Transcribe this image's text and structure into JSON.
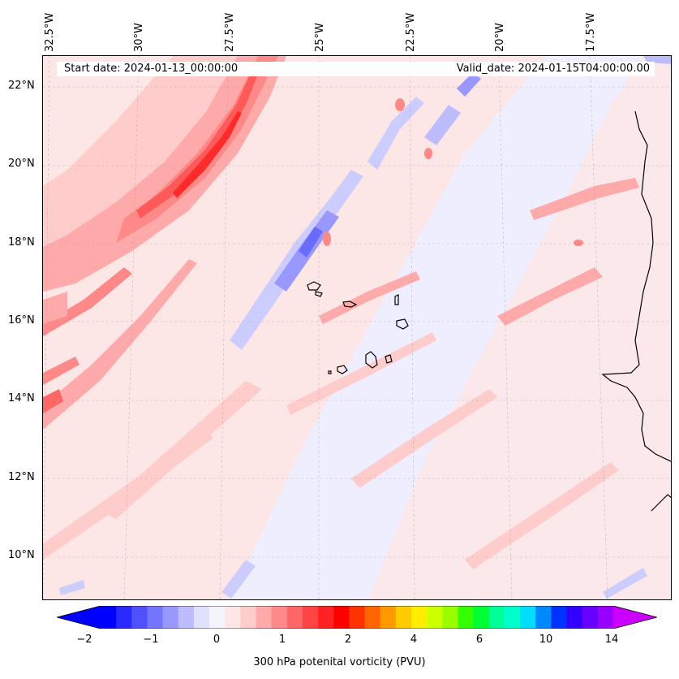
{
  "header": {
    "start_date": "Start date: 2024-01-13_00:00:00",
    "valid_date": "Valid_date: 2024-01-15T04:00:00.00"
  },
  "lat_labels": [
    "22°N",
    "20°N",
    "18°N",
    "16°N",
    "14°N",
    "12°N",
    "10°N"
  ],
  "lon_labels": [
    "32.5°W",
    "30°W",
    "27.5°W",
    "25°W",
    "22.5°W",
    "20°W",
    "17.5°W"
  ],
  "colorbar": {
    "label": "300 hPa potenital vorticity (PVU)",
    "ticks": [
      "−2",
      "−1",
      "0",
      "1",
      "2",
      "4",
      "6",
      "10",
      "14"
    ],
    "colors": [
      "#0000ff",
      "#2a2aff",
      "#5050ff",
      "#7474ff",
      "#9898ff",
      "#bcbcff",
      "#e0e0ff",
      "#f4f4ff",
      "#ffe6e6",
      "#ffcccc",
      "#ffaaaa",
      "#ff8888",
      "#ff6666",
      "#ff4444",
      "#ff2222",
      "#ff0000",
      "#ff3300",
      "#ff6600",
      "#ff9900",
      "#ffcc00",
      "#ffee00",
      "#ccff00",
      "#99ff00",
      "#33ff00",
      "#00ff33",
      "#00ff99",
      "#00ffcc",
      "#00ddff",
      "#0088ff",
      "#0033ff",
      "#3300ff",
      "#6600ff",
      "#9900ff"
    ],
    "under_color": "#0000ff",
    "over_color": "#cc00ff"
  },
  "icons": {
    "coastline": "coastline-outline",
    "islands": "cape-verde-islands"
  }
}
